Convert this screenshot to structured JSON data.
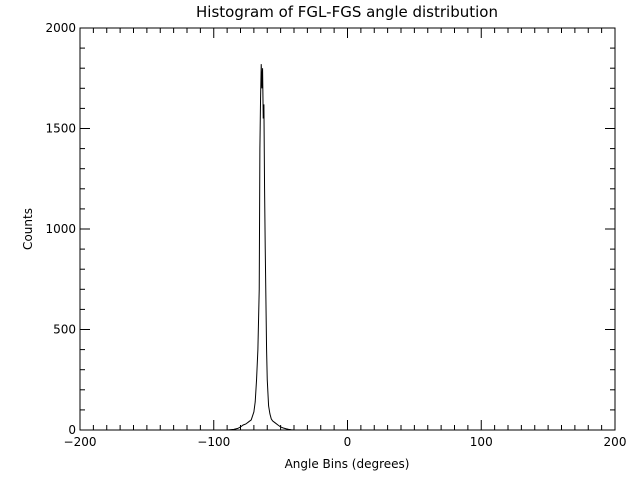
{
  "chart_data": {
    "type": "line",
    "title": "Histogram of FGL-FGS angle distribution",
    "xlabel": "Angle Bins (degrees)",
    "ylabel": "Counts",
    "xlim": [
      -200,
      200
    ],
    "ylim": [
      0,
      2000
    ],
    "xticks": [
      -200,
      -100,
      0,
      100,
      200
    ],
    "yticks": [
      0,
      500,
      1000,
      1500,
      2000
    ],
    "x_minor_step": 10,
    "y_minor_step": 100,
    "grid": false,
    "series": [
      {
        "color": "#000000",
        "x": [
          -90,
          -85,
          -82,
          -80,
          -78,
          -76,
          -74,
          -72,
          -71,
          -70,
          -69,
          -68,
          -67,
          -66,
          -65.5,
          -65,
          -64.5,
          -64,
          -63.5,
          -63,
          -62.5,
          -62,
          -61.5,
          -61,
          -60.5,
          -60,
          -59,
          -58,
          -57,
          -56,
          -55,
          -54,
          -52,
          -50,
          -48,
          -46,
          -44,
          -42,
          -40
        ],
        "y": [
          0,
          3,
          8,
          15,
          25,
          30,
          40,
          50,
          70,
          90,
          140,
          250,
          400,
          700,
          1400,
          1650,
          1820,
          1700,
          1800,
          1550,
          1620,
          1200,
          900,
          650,
          400,
          250,
          120,
          80,
          55,
          45,
          40,
          35,
          25,
          15,
          10,
          6,
          3,
          1,
          0
        ]
      }
    ]
  }
}
